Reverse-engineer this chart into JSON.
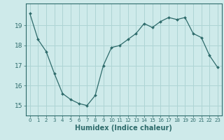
{
  "x": [
    0,
    1,
    2,
    3,
    4,
    5,
    6,
    7,
    8,
    9,
    10,
    11,
    12,
    13,
    14,
    15,
    16,
    17,
    18,
    19,
    20,
    21,
    22,
    23
  ],
  "y": [
    19.6,
    18.3,
    17.7,
    16.6,
    15.6,
    15.3,
    15.1,
    15.0,
    15.5,
    17.0,
    17.9,
    18.0,
    18.3,
    18.6,
    19.1,
    18.9,
    19.2,
    19.4,
    19.3,
    19.4,
    18.6,
    18.4,
    17.5,
    16.9
  ],
  "xlabel": "Humidex (Indice chaleur)",
  "ylim": [
    14.5,
    20.1
  ],
  "xlim": [
    -0.5,
    23.5
  ],
  "bg_color": "#ceeaea",
  "line_color": "#2e6b6b",
  "grid_color": "#aed4d4",
  "yticks": [
    15,
    16,
    17,
    18,
    19
  ],
  "xticks": [
    0,
    1,
    2,
    3,
    4,
    5,
    6,
    7,
    8,
    9,
    10,
    11,
    12,
    13,
    14,
    15,
    16,
    17,
    18,
    19,
    20,
    21,
    22,
    23
  ]
}
